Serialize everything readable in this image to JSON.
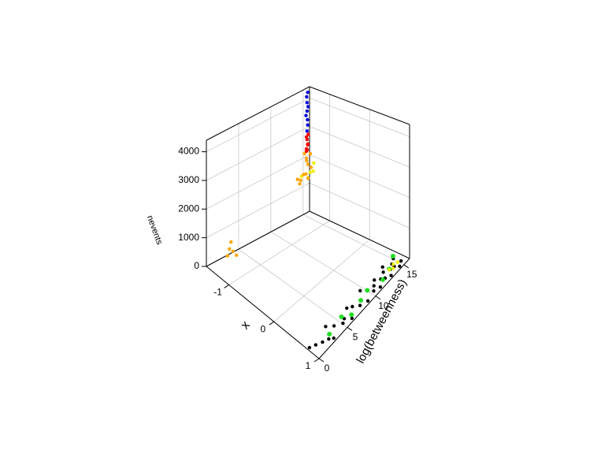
{
  "chart_data": {
    "type": "scatter3d",
    "xlabel": "x",
    "ylabel": "log(betweenness)",
    "zlabel": "nevents",
    "xlim": [
      -1.5,
      1
    ],
    "ylim": [
      0,
      16
    ],
    "zlim": [
      0,
      4400
    ],
    "xticks": [
      -1,
      0,
      1
    ],
    "yticks": [
      0,
      5,
      10,
      15
    ],
    "zticks": [
      0,
      1000,
      2000,
      3000,
      4000
    ],
    "grid": true,
    "series": [
      {
        "color": "#000000",
        "x": [
          0.75,
          0.8,
          0.85,
          0.9,
          0.95,
          0.7,
          0.8,
          0.9,
          0.85,
          0.95,
          0.75,
          0.8,
          0.9,
          0.85,
          0.95,
          0.7,
          0.8,
          0.9,
          0.85,
          0.95,
          0.75,
          0.85,
          0.9,
          0.8,
          0.95,
          0.7,
          0.85,
          0.9,
          0.8,
          0.95,
          0.75,
          0.9
        ],
        "y": [
          0.3,
          1,
          1.8,
          2.5,
          3,
          3.5,
          4.2,
          5,
          5.6,
          6.2,
          6.8,
          7.4,
          8,
          8.5,
          9,
          9.5,
          10,
          10.4,
          10.8,
          11.2,
          11.6,
          12,
          12.4,
          12.8,
          13.1,
          13.4,
          13.7,
          14,
          14.3,
          14.6,
          14.9,
          15.2
        ],
        "z": [
          0,
          10,
          0,
          20,
          0,
          10,
          0,
          30,
          10,
          0,
          20,
          0,
          10,
          40,
          0,
          20,
          10,
          0,
          50,
          10,
          0,
          30,
          20,
          60,
          0,
          40,
          10,
          80,
          30,
          0,
          60,
          20
        ]
      },
      {
        "color": "#22dd22",
        "x": [
          0.85,
          0.8,
          0.9,
          0.85,
          0.8,
          0.9,
          0.85,
          0.8
        ],
        "y": [
          3,
          5.5,
          6.5,
          8.5,
          10,
          12,
          13.5,
          14.5
        ],
        "z": [
          20,
          40,
          10,
          30,
          20,
          50,
          60,
          250
        ]
      },
      {
        "color": "#eeee00",
        "x": [
          -1.3,
          -1.25,
          -1.35,
          -1.2,
          -1.3,
          0.9,
          0.85,
          0.9,
          0.85
        ],
        "y": [
          14.5,
          15,
          13.8,
          14.2,
          15.4,
          13.8,
          14.2,
          14.6,
          13.5
        ],
        "z": [
          1500,
          1700,
          1600,
          1800,
          1900,
          60,
          80,
          100,
          40
        ]
      },
      {
        "color": "#ffa500",
        "x": [
          -1.4,
          -1.35,
          -1.3,
          -1.45,
          -1.4,
          -1.3,
          -1.35,
          -1.25,
          -1.4,
          -1.3,
          -1.35,
          -1.45,
          -1.1,
          -1.05,
          -1.15,
          -1.1,
          -1.0
        ],
        "y": [
          14,
          14.5,
          15,
          15.2,
          13.5,
          13.8,
          14.8,
          14.2,
          15.5,
          13.2,
          14.6,
          14.9,
          0.5,
          1,
          1.4,
          0.8,
          1.2
        ],
        "z": [
          1400,
          1600,
          1800,
          2000,
          1500,
          1700,
          1900,
          1550,
          2150,
          1450,
          2050,
          2200,
          800,
          950,
          1100,
          1000,
          850
        ]
      },
      {
        "color": "#ff0000",
        "x": [
          -1.45,
          -1.4,
          -1.45,
          -1.4,
          -1.45,
          -1.4,
          -1.45,
          -1.42
        ],
        "y": [
          15.2,
          15,
          15.4,
          15.1,
          15.3,
          14.9,
          15.2,
          15.3
        ],
        "z": [
          2250,
          2350,
          2450,
          2550,
          2650,
          2400,
          2750,
          2850
        ]
      },
      {
        "color": "#0000dd",
        "x": [
          -1.45,
          -1.45,
          -1.44,
          -1.46,
          -1.45,
          -1.44,
          -1.45,
          -1.46,
          -1.45
        ],
        "y": [
          15.3,
          15.4,
          15.3,
          15.2,
          15.3,
          15.4,
          15.3,
          15.3,
          15.4
        ],
        "z": [
          2950,
          3150,
          3350,
          3500,
          3650,
          3800,
          3950,
          4150,
          4300
        ]
      }
    ]
  }
}
